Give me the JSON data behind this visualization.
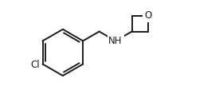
{
  "bg_color": "#ffffff",
  "line_color": "#1a1a1a",
  "line_width": 1.4,
  "font_size": 8.5,
  "nh_label": "NH",
  "cl_label": "Cl",
  "o_label": "O",
  "figsize": [
    2.8,
    1.32
  ],
  "dpi": 100,
  "xlim": [
    0,
    10
  ],
  "ylim": [
    0,
    4.7
  ]
}
